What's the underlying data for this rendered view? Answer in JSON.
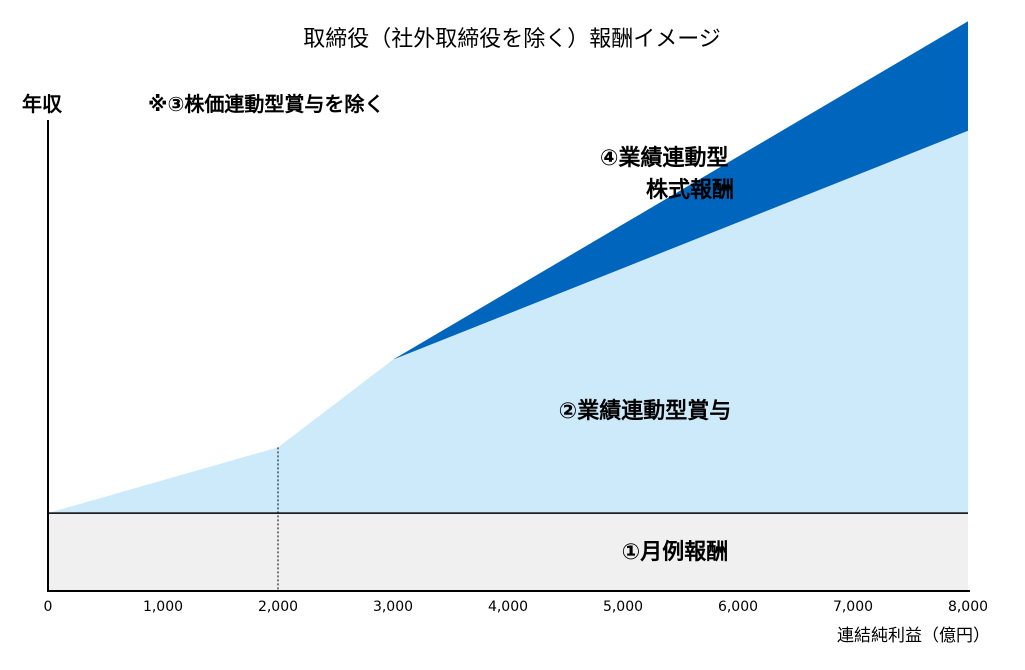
{
  "chart_data": {
    "type": "area",
    "title": "取締役（社外取締役を除く）報酬イメージ",
    "ylabel": "年収",
    "note": "※③株価連動型賞与を除く",
    "xlabel": "連結純利益（億円）",
    "xlim": [
      0,
      8000
    ],
    "ylim": [
      0,
      100
    ],
    "x_ticks": [
      "0",
      "1,000",
      "2,000",
      "3,000",
      "4,000",
      "5,000",
      "6,000",
      "7,000",
      "8,000"
    ],
    "x": [
      0,
      2000,
      3000,
      8000
    ],
    "marker_x": 2000,
    "series": [
      {
        "name": "①月例報酬",
        "color": "#f0f0f0",
        "values": [
          16,
          16,
          16,
          16
        ]
      },
      {
        "name": "②業績連動型賞与",
        "color": "#cdeafb",
        "values": [
          0,
          13.5,
          31.5,
          78.5
        ]
      },
      {
        "name": "④業績連動型株式報酬",
        "color": "#0066bd",
        "values": [
          0,
          0,
          0,
          22.5
        ]
      }
    ],
    "series_label_lines": [
      [
        "①月例報酬"
      ],
      [
        "②業績連動型賞与"
      ],
      [
        "④業績連動型",
        "株式報酬"
      ]
    ],
    "grid": false,
    "legend": "none"
  }
}
